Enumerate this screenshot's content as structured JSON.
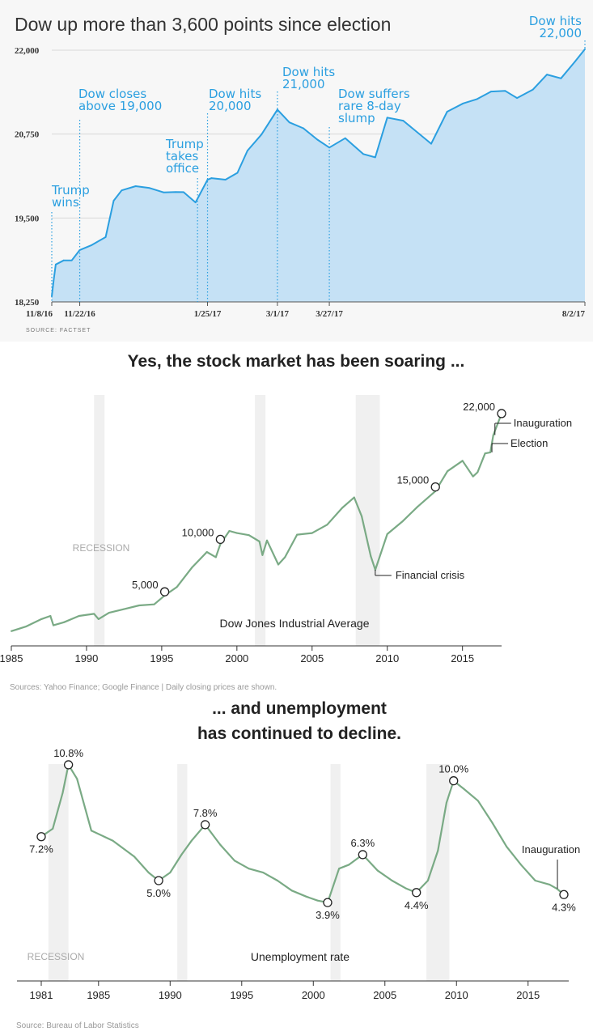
{
  "chart_data": [
    {
      "type": "area",
      "title": "Dow up more than 3,600 points since election",
      "source": "SOURCE: FACTSET",
      "ylim": [
        18250,
        22000
      ],
      "yticks": [
        "22,000",
        "20,750",
        "19,500",
        "18,250"
      ],
      "ytick_values": [
        22000,
        20750,
        19500,
        18250
      ],
      "xticks": [
        "11/8/16",
        "11/22/16",
        "1/25/17",
        "3/1/17",
        "3/27/17",
        "8/2/17"
      ],
      "xtick_dates": [
        "2016-11-08",
        "2016-11-22",
        "2017-01-25",
        "2017-03-01",
        "2017-03-27",
        "2017-08-02"
      ],
      "x": [
        "2016-11-08",
        "2016-11-09",
        "2016-11-10",
        "2016-11-14",
        "2016-11-18",
        "2016-11-22",
        "2016-11-28",
        "2016-12-05",
        "2016-12-09",
        "2016-12-13",
        "2016-12-20",
        "2016-12-27",
        "2017-01-03",
        "2017-01-09",
        "2017-01-13",
        "2017-01-19",
        "2017-01-25",
        "2017-01-27",
        "2017-02-03",
        "2017-02-09",
        "2017-02-14",
        "2017-02-21",
        "2017-03-01",
        "2017-03-07",
        "2017-03-14",
        "2017-03-21",
        "2017-03-27",
        "2017-04-04",
        "2017-04-13",
        "2017-04-19",
        "2017-04-25",
        "2017-05-03",
        "2017-05-17",
        "2017-05-25",
        "2017-06-02",
        "2017-06-09",
        "2017-06-16",
        "2017-06-23",
        "2017-06-29",
        "2017-07-07",
        "2017-07-14",
        "2017-07-21",
        "2017-07-28",
        "2017-08-02"
      ],
      "values": [
        18332,
        18589,
        18807,
        18869,
        18868,
        19023,
        19097,
        19216,
        19757,
        19911,
        19974,
        19946,
        19882,
        19887,
        19885,
        19732,
        20069,
        20094,
        20071,
        20173,
        20504,
        20743,
        21115,
        20924,
        20837,
        20668,
        20550,
        20689,
        20453,
        20404,
        20996,
        20950,
        20606,
        21083,
        21206,
        21272,
        21384,
        21395,
        21287,
        21414,
        21637,
        21580,
        21830,
        22016
      ],
      "annotations": [
        {
          "label": [
            "Trump",
            "wins"
          ],
          "date": "2016-11-08"
        },
        {
          "label": [
            "Dow closes",
            "above 19,000"
          ],
          "date": "2016-11-22"
        },
        {
          "label": [
            "Trump",
            "takes",
            "office"
          ],
          "date": "2017-01-20"
        },
        {
          "label": [
            "Dow hits",
            "20,000"
          ],
          "date": "2017-01-25"
        },
        {
          "label": [
            "Dow hits",
            "21,000"
          ],
          "date": "2017-03-01"
        },
        {
          "label": [
            "Dow suffers",
            "rare 8-day",
            "slump"
          ],
          "date": "2017-03-27"
        },
        {
          "label": [
            "Dow hits",
            "22,000"
          ],
          "date": "2017-08-02"
        }
      ],
      "colors": {
        "line": "#2b9fe0",
        "fill": "#c5e1f5",
        "annotation": "#2b9fe0"
      }
    },
    {
      "type": "line",
      "headline": "Yes, the stock market has been soaring ...",
      "series_label": "Dow Jones Industrial Average",
      "recession_label": "RECESSION",
      "source": "Sources: Yahoo Finance; Google Finance | Daily closing prices are shown.",
      "xlim": [
        1985,
        2017.6
      ],
      "ylim": [
        1000,
        23000
      ],
      "xticks": [
        "1985",
        "1990",
        "1995",
        "2005",
        "2010",
        "2015",
        "2000"
      ],
      "xtick_values": [
        1985,
        1990,
        1995,
        2005,
        2010,
        2015,
        2000
      ],
      "recessions": [
        [
          1990.5,
          1991.2
        ],
        [
          2001.2,
          2001.9
        ],
        [
          2007.9,
          2009.5
        ]
      ],
      "x": [
        1985.0,
        1986.0,
        1987.0,
        1987.6,
        1987.8,
        1988.5,
        1989.5,
        1990.5,
        1990.8,
        1991.5,
        1992.5,
        1993.5,
        1994.5,
        1995.2,
        1996.0,
        1997.0,
        1998.0,
        1998.6,
        1998.9,
        1999.5,
        2000.0,
        2000.8,
        2001.5,
        2001.7,
        2002.0,
        2002.75,
        2003.2,
        2004.0,
        2005.0,
        2006.0,
        2007.0,
        2007.8,
        2008.3,
        2008.9,
        2009.2,
        2010.0,
        2011.0,
        2012.0,
        2013.2,
        2014.0,
        2015.0,
        2015.7,
        2016.0,
        2016.5,
        2016.85,
        2017.05,
        2017.6
      ],
      "values": [
        1250,
        1700,
        2400,
        2700,
        1800,
        2100,
        2700,
        2900,
        2400,
        3000,
        3350,
        3700,
        3800,
        4650,
        5450,
        7300,
        8800,
        8300,
        9550,
        10800,
        10600,
        10400,
        9800,
        8500,
        9900,
        7600,
        8300,
        10450,
        10600,
        11400,
        13000,
        14000,
        12200,
        8400,
        7100,
        10500,
        11700,
        13100,
        14600,
        16500,
        17500,
        16000,
        16400,
        18200,
        18300,
        19950,
        22000
      ],
      "annotations": [
        {
          "label": "5,000",
          "x": 1995.2,
          "value": 5000
        },
        {
          "label": "10,000",
          "x": 1998.9,
          "value": 10000
        },
        {
          "label": "15,000",
          "x": 2013.2,
          "value": 15000
        },
        {
          "label": "22,000",
          "x": 2017.6,
          "value": 22000
        },
        {
          "label": "Inauguration",
          "x": 2017.05,
          "value": 19950
        },
        {
          "label": "Election",
          "x": 2016.85,
          "value": 18300
        },
        {
          "label": "Financial crisis",
          "x": 2009.2,
          "value": 7100
        }
      ],
      "colors": {
        "line": "#7aaa85",
        "recession": "#f0f0f0"
      }
    },
    {
      "type": "line",
      "headline": [
        "... and unemployment",
        "has continued to decline."
      ],
      "series_label": "Unemployment rate",
      "recession_label": "RECESSION",
      "source": "Source: Bureau of Labor Statistics",
      "xlim": [
        1981,
        2017.5
      ],
      "ylim": [
        2,
        11
      ],
      "xticks": [
        "1981",
        "1985",
        "1990",
        "1995",
        "2000",
        "2005",
        "2010",
        "2015"
      ],
      "xtick_values": [
        1981,
        1985,
        1990,
        1995,
        2000,
        2005,
        2010,
        2015
      ],
      "recessions": [
        [
          1981.5,
          1982.9
        ],
        [
          1990.5,
          1991.2
        ],
        [
          2001.2,
          2001.9
        ],
        [
          2007.9,
          2009.5
        ]
      ],
      "x": [
        1981.0,
        1981.8,
        1982.5,
        1982.9,
        1983.5,
        1984.5,
        1986.0,
        1987.5,
        1988.5,
        1989.2,
        1990.0,
        1990.8,
        1991.5,
        1992.45,
        1993.5,
        1994.5,
        1995.5,
        1996.5,
        1997.5,
        1998.5,
        1999.5,
        2000.3,
        2001.0,
        2001.8,
        2002.5,
        2003.45,
        2004.5,
        2005.5,
        2006.5,
        2007.2,
        2008.0,
        2008.7,
        2009.3,
        2009.8,
        2010.5,
        2011.5,
        2012.5,
        2013.5,
        2014.5,
        2015.5,
        2016.5,
        2017.0,
        2017.5
      ],
      "values": [
        7.2,
        7.6,
        9.4,
        10.8,
        10.1,
        7.5,
        7.0,
        6.2,
        5.4,
        5.0,
        5.4,
        6.3,
        7.0,
        7.8,
        6.8,
        6.0,
        5.6,
        5.4,
        5.0,
        4.5,
        4.2,
        4.0,
        3.9,
        5.6,
        5.8,
        6.3,
        5.5,
        5.0,
        4.6,
        4.4,
        5.0,
        6.5,
        8.9,
        10.0,
        9.6,
        9.0,
        7.9,
        6.7,
        5.8,
        5.0,
        4.8,
        4.6,
        4.3
      ],
      "annotations": [
        {
          "label": "7.2%",
          "x": 1981.0,
          "value": 7.2
        },
        {
          "label": "10.8%",
          "x": 1982.9,
          "value": 10.8
        },
        {
          "label": "5.0%",
          "x": 1989.2,
          "value": 5.0
        },
        {
          "label": "7.8%",
          "x": 1992.45,
          "value": 7.8
        },
        {
          "label": "3.9%",
          "x": 2001.0,
          "value": 3.9
        },
        {
          "label": "6.3%",
          "x": 2003.45,
          "value": 6.3
        },
        {
          "label": "4.4%",
          "x": 2007.2,
          "value": 4.4
        },
        {
          "label": "10.0%",
          "x": 2009.8,
          "value": 10.0
        },
        {
          "label": "4.3%",
          "x": 2017.5,
          "value": 4.3
        },
        {
          "label": "Inauguration",
          "x": 2017.05,
          "value": 4.6
        }
      ],
      "colors": {
        "line": "#7aaa85",
        "recession": "#f0f0f0"
      }
    }
  ]
}
